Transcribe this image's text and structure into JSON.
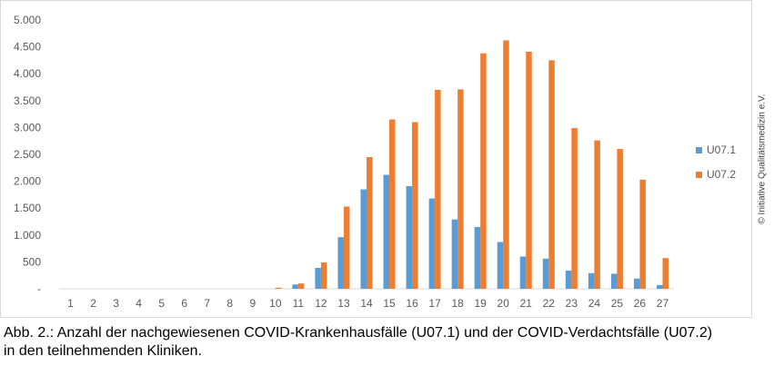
{
  "chart_data": {
    "type": "bar",
    "title": "",
    "xlabel": "",
    "ylabel": "",
    "categories": [
      "1",
      "2",
      "3",
      "4",
      "5",
      "6",
      "7",
      "8",
      "9",
      "10",
      "11",
      "12",
      "13",
      "14",
      "15",
      "16",
      "17",
      "18",
      "19",
      "20",
      "21",
      "22",
      "23",
      "24",
      "25",
      "26",
      "27"
    ],
    "series": [
      {
        "name": "U07.1",
        "color": "#5b9bd5",
        "values": [
          0,
          0,
          0,
          0,
          0,
          0,
          0,
          0,
          0,
          0,
          80,
          390,
          960,
          1850,
          2120,
          1910,
          1680,
          1290,
          1150,
          870,
          600,
          560,
          340,
          290,
          280,
          190,
          70
        ]
      },
      {
        "name": "U07.2",
        "color": "#ed7d31",
        "values": [
          0,
          0,
          0,
          0,
          0,
          0,
          0,
          0,
          0,
          20,
          100,
          490,
          1530,
          2450,
          3150,
          3100,
          3700,
          3710,
          4380,
          4620,
          4410,
          4250,
          2990,
          2760,
          2600,
          2030,
          570
        ]
      }
    ],
    "ylim": [
      0,
      5000
    ],
    "yticks": [
      "-",
      "500",
      "1.000",
      "1.500",
      "2.000",
      "2.500",
      "3.000",
      "3.500",
      "4.000",
      "4.500",
      "5.000"
    ],
    "grid": false,
    "legend_position": "right"
  },
  "caption": {
    "line1": "Abb. 2.: Anzahl der nachgewiesenen COVID-Krankenhausfälle (U07.1) und der COVID-Verdachtsfälle (U07.2)",
    "line2": "in den teilnehmenden Kliniken."
  },
  "copyright": "© Initiative Qualitätsmedizin e.V."
}
